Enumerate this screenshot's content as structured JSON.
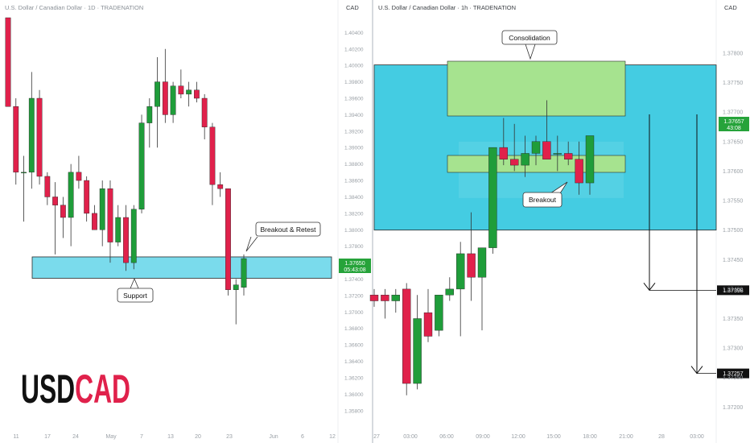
{
  "symbol_text": {
    "part1": "USD",
    "part2": "CAD"
  },
  "colors": {
    "up": "#1f9d3a",
    "down": "#e0214b",
    "zone": "#4dcfe6",
    "consol": "#a6e38f",
    "axis_text": "#9aa0a6",
    "price_tag": "#26a33a"
  },
  "panels": [
    {
      "id": "left",
      "title": "U.S. Dollar / Canadian Dollar · 1D · TRADENATION",
      "currency": "CAD",
      "price_ticks": [
        "1.40400",
        "1.40200",
        "1.40000",
        "1.39800",
        "1.39600",
        "1.39400",
        "1.39200",
        "1.39000",
        "1.38800",
        "1.38600",
        "1.38400",
        "1.38200",
        "1.38000",
        "1.37800",
        "1.37600",
        "1.37400",
        "1.37200",
        "1.37000",
        "1.36800",
        "1.36600",
        "1.36400",
        "1.36200",
        "1.36000",
        "1.35800"
      ],
      "time_ticks": [
        "11",
        "17",
        "24",
        "May",
        "7",
        "13",
        "20",
        "23",
        "Jun",
        "6",
        "12"
      ],
      "price_tag": {
        "price": "1.37650",
        "countdown": "05:43:08",
        "value": 1.3765
      },
      "zone": {
        "low": 1.3741,
        "high": 1.3767,
        "label": "Support"
      },
      "callouts": [
        {
          "text": "Breakout & Retest"
        },
        {
          "text": "Support"
        }
      ],
      "chart_data": {
        "type": "candlestick",
        "price_range": [
          1.357,
          1.4058
        ],
        "candles": [
          {
            "o": 1.4058,
            "h": 1.4058,
            "l": 1.395,
            "c": 1.395
          },
          {
            "o": 1.395,
            "h": 1.396,
            "l": 1.3855,
            "c": 1.387
          },
          {
            "o": 1.387,
            "h": 1.389,
            "l": 1.381,
            "c": 1.387
          },
          {
            "o": 1.387,
            "h": 1.3992,
            "l": 1.385,
            "c": 1.396
          },
          {
            "o": 1.396,
            "h": 1.397,
            "l": 1.3855,
            "c": 1.3865
          },
          {
            "o": 1.3865,
            "h": 1.387,
            "l": 1.383,
            "c": 1.384
          },
          {
            "o": 1.384,
            "h": 1.3858,
            "l": 1.377,
            "c": 1.383
          },
          {
            "o": 1.383,
            "h": 1.384,
            "l": 1.379,
            "c": 1.3815
          },
          {
            "o": 1.3815,
            "h": 1.388,
            "l": 1.378,
            "c": 1.387
          },
          {
            "o": 1.387,
            "h": 1.389,
            "l": 1.385,
            "c": 1.386
          },
          {
            "o": 1.386,
            "h": 1.3865,
            "l": 1.381,
            "c": 1.382
          },
          {
            "o": 1.382,
            "h": 1.383,
            "l": 1.38,
            "c": 1.38
          },
          {
            "o": 1.38,
            "h": 1.386,
            "l": 1.378,
            "c": 1.385
          },
          {
            "o": 1.385,
            "h": 1.386,
            "l": 1.376,
            "c": 1.3785
          },
          {
            "o": 1.3785,
            "h": 1.383,
            "l": 1.378,
            "c": 1.3815
          },
          {
            "o": 1.3815,
            "h": 1.383,
            "l": 1.375,
            "c": 1.376
          },
          {
            "o": 1.376,
            "h": 1.383,
            "l": 1.3752,
            "c": 1.3825
          },
          {
            "o": 1.3825,
            "h": 1.394,
            "l": 1.382,
            "c": 1.393
          },
          {
            "o": 1.393,
            "h": 1.396,
            "l": 1.39,
            "c": 1.395
          },
          {
            "o": 1.395,
            "h": 1.401,
            "l": 1.39,
            "c": 1.398
          },
          {
            "o": 1.398,
            "h": 1.402,
            "l": 1.393,
            "c": 1.394
          },
          {
            "o": 1.394,
            "h": 1.398,
            "l": 1.393,
            "c": 1.3975
          },
          {
            "o": 1.3975,
            "h": 1.3995,
            "l": 1.396,
            "c": 1.3965
          },
          {
            "o": 1.3965,
            "h": 1.398,
            "l": 1.395,
            "c": 1.397
          },
          {
            "o": 1.397,
            "h": 1.398,
            "l": 1.3955,
            "c": 1.396
          },
          {
            "o": 1.396,
            "h": 1.3965,
            "l": 1.391,
            "c": 1.3925
          },
          {
            "o": 1.3925,
            "h": 1.393,
            "l": 1.383,
            "c": 1.3855
          },
          {
            "o": 1.3855,
            "h": 1.387,
            "l": 1.384,
            "c": 1.385
          },
          {
            "o": 1.385,
            "h": 1.385,
            "l": 1.372,
            "c": 1.3727
          },
          {
            "o": 1.3727,
            "h": 1.374,
            "l": 1.3685,
            "c": 1.3733
          },
          {
            "o": 1.373,
            "h": 1.377,
            "l": 1.372,
            "c": 1.3765
          }
        ]
      }
    },
    {
      "id": "right",
      "title": "U.S. Dollar / Canadian Dollar · 1h · TRADENATION",
      "currency": "CAD",
      "price_ticks": [
        "1.37800",
        "1.37750",
        "1.37700",
        "1.37650",
        "1.37600",
        "1.37550",
        "1.37500",
        "1.37450",
        "1.37400",
        "1.37350",
        "1.37300",
        "1.37250",
        "1.37200"
      ],
      "time_ticks": [
        "27",
        "03:00",
        "06:00",
        "09:00",
        "12:00",
        "15:00",
        "18:00",
        "21:00",
        "28",
        "03:00"
      ],
      "price_tag": {
        "price": "1.37657",
        "countdown": "43:08",
        "value": 1.37657
      },
      "targets": [
        {
          "price": "1.37398",
          "value": 1.37398
        },
        {
          "price": "1.37257",
          "value": 1.37257
        }
      ],
      "zone": {
        "low": 1.375,
        "high": 1.3778
      },
      "consolidation": {
        "outer_low": 1.3758,
        "outer_high": 1.3774,
        "inner_low": 1.376,
        "inner_high": 1.3762
      },
      "callouts": [
        {
          "text": "Consolidation"
        },
        {
          "text": "Breakout"
        }
      ],
      "chart_data": {
        "type": "candlestick",
        "price_range": [
          1.3718,
          1.3786
        ],
        "candles": [
          {
            "o": 1.3739,
            "h": 1.374,
            "l": 1.3737,
            "c": 1.3738
          },
          {
            "o": 1.3739,
            "h": 1.374,
            "l": 1.3735,
            "c": 1.3738
          },
          {
            "o": 1.3738,
            "h": 1.374,
            "l": 1.3736,
            "c": 1.3739
          },
          {
            "o": 1.374,
            "h": 1.3741,
            "l": 1.3722,
            "c": 1.3724
          },
          {
            "o": 1.3724,
            "h": 1.3739,
            "l": 1.3723,
            "c": 1.3735
          },
          {
            "o": 1.3736,
            "h": 1.374,
            "l": 1.3731,
            "c": 1.3732
          },
          {
            "o": 1.3733,
            "h": 1.3739,
            "l": 1.3732,
            "c": 1.3739
          },
          {
            "o": 1.3739,
            "h": 1.3742,
            "l": 1.3738,
            "c": 1.374
          },
          {
            "o": 1.374,
            "h": 1.3748,
            "l": 1.3732,
            "c": 1.3746
          },
          {
            "o": 1.3746,
            "h": 1.3753,
            "l": 1.3738,
            "c": 1.3742
          },
          {
            "o": 1.3742,
            "h": 1.3747,
            "l": 1.3733,
            "c": 1.3747
          },
          {
            "o": 1.3747,
            "h": 1.3764,
            "l": 1.3746,
            "c": 1.3764
          },
          {
            "o": 1.3764,
            "h": 1.3769,
            "l": 1.3761,
            "c": 1.3762
          },
          {
            "o": 1.3762,
            "h": 1.3768,
            "l": 1.376,
            "c": 1.3761
          },
          {
            "o": 1.3761,
            "h": 1.3766,
            "l": 1.3759,
            "c": 1.3763
          },
          {
            "o": 1.3763,
            "h": 1.3766,
            "l": 1.3761,
            "c": 1.3765
          },
          {
            "o": 1.3765,
            "h": 1.3772,
            "l": 1.3762,
            "c": 1.3762
          },
          {
            "o": 1.3763,
            "h": 1.3766,
            "l": 1.376,
            "c": 1.3763
          },
          {
            "o": 1.3763,
            "h": 1.3765,
            "l": 1.3761,
            "c": 1.3762
          },
          {
            "o": 1.3762,
            "h": 1.3765,
            "l": 1.3756,
            "c": 1.3758
          },
          {
            "o": 1.3758,
            "h": 1.3766,
            "l": 1.3756,
            "c": 1.3766
          }
        ]
      }
    }
  ]
}
